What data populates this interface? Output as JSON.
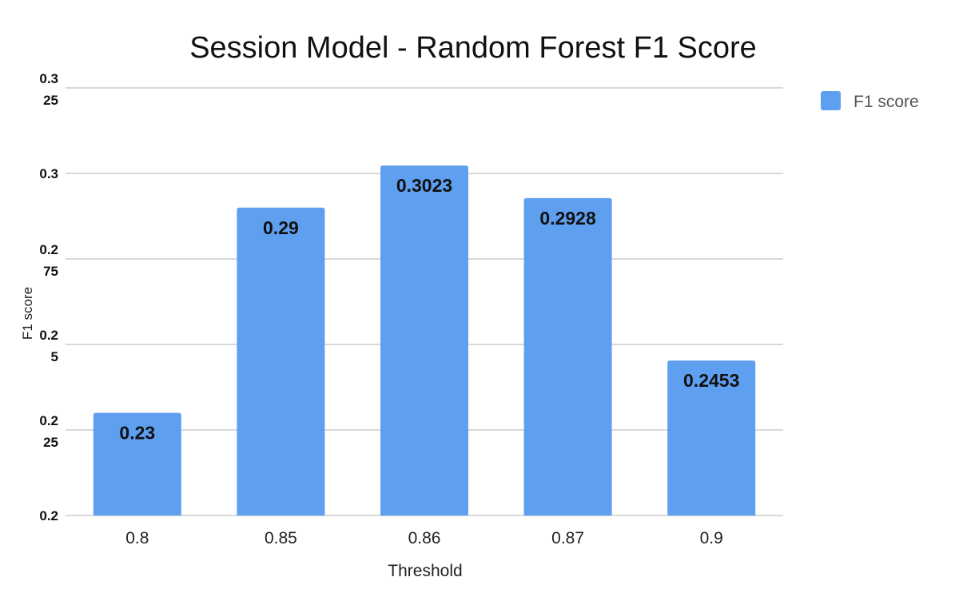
{
  "chart_data": {
    "type": "bar",
    "title": "Session Model - Random Forest F1 Score",
    "xlabel": "Threshold",
    "ylabel": "F1 score",
    "categories": [
      "0.8",
      "0.85",
      "0.86",
      "0.87",
      "0.9"
    ],
    "series": [
      {
        "name": "F1 score",
        "values": [
          0.23,
          0.29,
          0.3023,
          0.2928,
          0.2453
        ],
        "data_labels": [
          "0.23",
          "0.29",
          "0.3023",
          "0.2928",
          "0.2453"
        ],
        "color": "#5e9ff0"
      }
    ],
    "ylim": [
      0.2,
      0.325
    ],
    "yticks": [
      {
        "value": 0.2,
        "lines": [
          "0.2"
        ]
      },
      {
        "value": 0.225,
        "lines": [
          "0.2",
          "25"
        ]
      },
      {
        "value": 0.25,
        "lines": [
          "0.2",
          "5"
        ]
      },
      {
        "value": 0.275,
        "lines": [
          "0.2",
          "75"
        ]
      },
      {
        "value": 0.3,
        "lines": [
          "0.3"
        ]
      },
      {
        "value": 0.325,
        "lines": [
          "0.3",
          "25"
        ]
      }
    ],
    "grid": true,
    "legend_position": "top-right"
  }
}
